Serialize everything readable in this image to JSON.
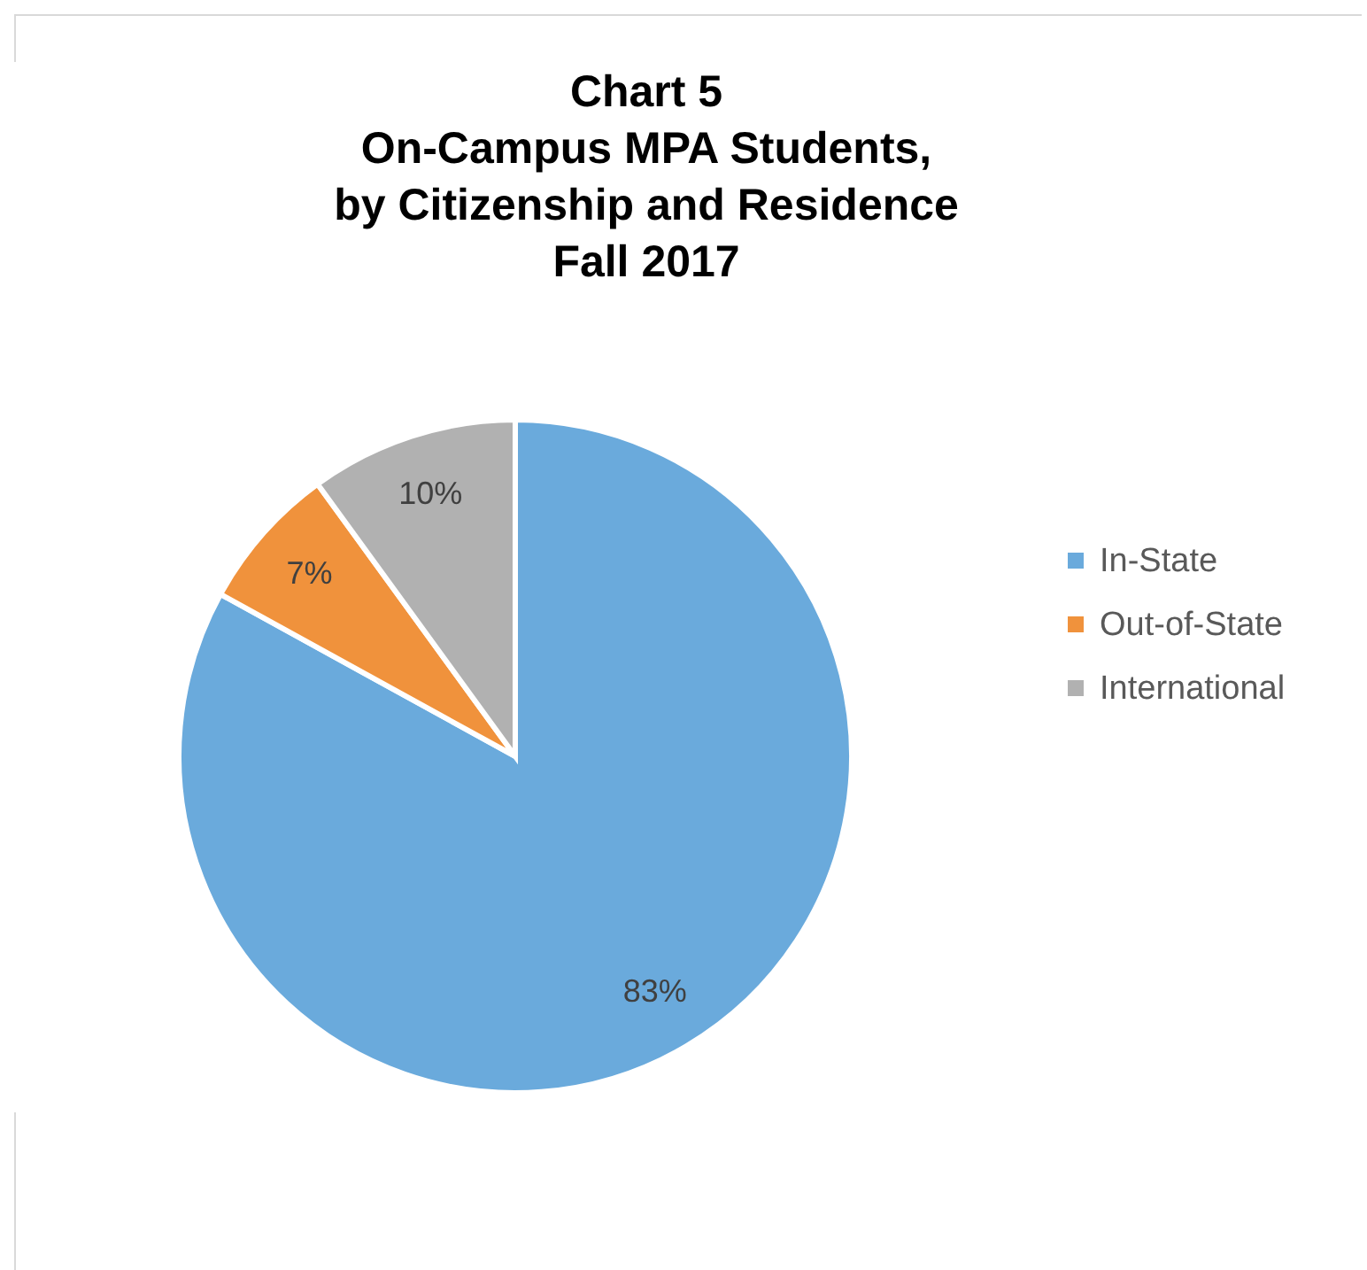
{
  "chart_data": {
    "type": "pie",
    "title": "Chart 5\nOn-Campus MPA Students,\nby Citizenship and Residence\nFall 2017",
    "categories": [
      "In-State",
      "Out-of-State",
      "International"
    ],
    "values": [
      83,
      7,
      10
    ],
    "colors": [
      "#6aaadc",
      "#f0923c",
      "#b1b1b1"
    ],
    "value_labels": [
      "83%",
      "7%",
      "10%"
    ],
    "legend": "right"
  }
}
